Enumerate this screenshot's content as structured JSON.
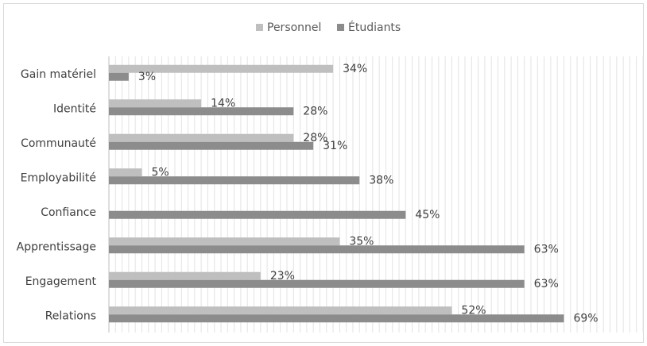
{
  "chart_data": {
    "type": "bar",
    "orientation": "horizontal",
    "categories": [
      "Gain matériel",
      "Identité",
      "Communauté",
      "Employabilité",
      "Confiance",
      "Apprentissage",
      "Engagement",
      "Relations"
    ],
    "series": [
      {
        "name": "Personnel",
        "values": [
          34,
          14,
          28,
          5,
          null,
          35,
          23,
          52
        ],
        "labels": [
          "34%",
          "14%",
          "28%",
          "5%",
          "",
          "35%",
          "23%",
          "52%"
        ],
        "color": "#bfbfbf"
      },
      {
        "name": "Étudiants",
        "values": [
          3,
          28,
          31,
          38,
          45,
          63,
          63,
          69
        ],
        "labels": [
          "3%",
          "28%",
          "31%",
          "38%",
          "45%",
          "63%",
          "63%",
          "69%"
        ],
        "color": "#8c8c8c"
      }
    ],
    "xlim": [
      0,
      81
    ],
    "grid": true,
    "legend": "top-center",
    "title": "",
    "xlabel": "",
    "ylabel": ""
  }
}
